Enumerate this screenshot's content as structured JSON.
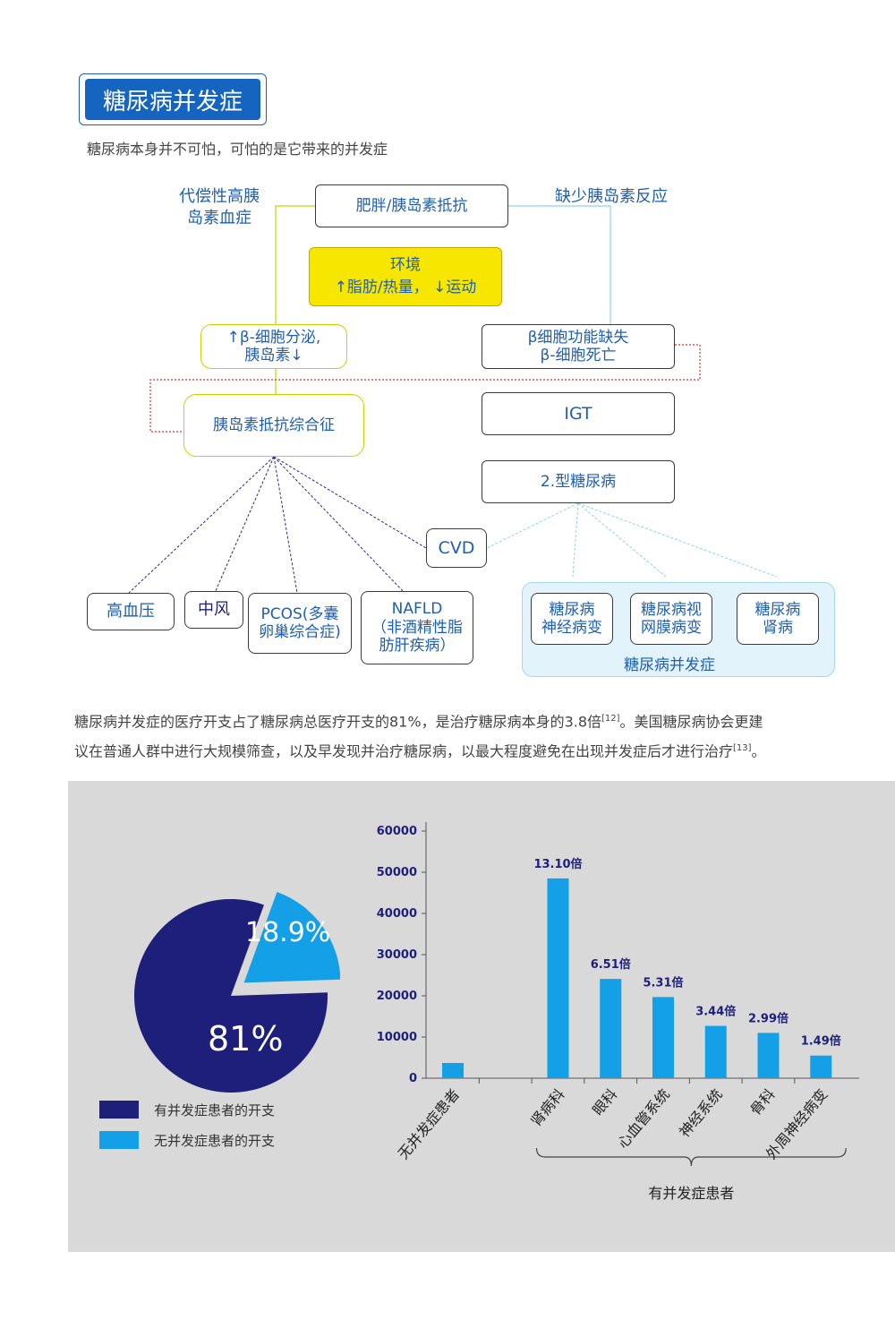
{
  "title": "糖尿病并发症",
  "subtitle": "糖尿病本身并不可怕，可怕的是它带来的并发症",
  "diagram": {
    "top_left_label": [
      "代偿性高胰",
      "岛素血症"
    ],
    "top_right_label": "缺少胰岛素反应",
    "obesity": "肥胖/胰岛素抵抗",
    "environment": [
      "环境",
      "↑脂肪/热量，  ↓运动"
    ],
    "beta_secretion": [
      "↑β-细胞分泌,",
      "胰岛素↓"
    ],
    "beta_failure": [
      "β细胞功能缺失",
      "β-细胞死亡"
    ],
    "insulin_resistance_syndrome": "胰岛素抵抗综合征",
    "igt": "IGT",
    "type2": "2.型糖尿病",
    "cvd": "CVD",
    "hypertension": "高血压",
    "stroke": "中风",
    "pcos": [
      "PCOS(多囊",
      "卵巢综合症)"
    ],
    "nafld": [
      "NAFLD",
      "（非酒精性脂",
      "肪肝疾病）"
    ],
    "neuropathy": [
      "糖尿病",
      "神经病变"
    ],
    "retinopathy": [
      "糖尿病视",
      "网膜病变"
    ],
    "nephropathy": [
      "糖尿病",
      "肾病"
    ],
    "complications_caption": "糖尿病并发症"
  },
  "paragraph": {
    "line1_a": "糖尿病并发症的医疗开支占了糖尿病总医疗开支的81%，是治疗糖尿病本身的3.8倍",
    "ref1": "[12]",
    "line1_b": "。美国糖尿病协会更建",
    "line2_a": "议在普通人群中进行大规模筛查，以及早发现并治疗糖尿病，以最大程度避免在出现并发症后才进行治疗",
    "ref2": "[13]",
    "line2_b": "。"
  },
  "pie": {
    "slices": [
      {
        "label": "81%",
        "value": 81.1,
        "color": "#1e1f7a"
      },
      {
        "label": "18.9%",
        "value": 18.9,
        "color": "#13a0e6"
      }
    ],
    "legend": [
      {
        "text": "有并发症患者的开支",
        "color": "#1e1f7a"
      },
      {
        "text": "无并发症患者的开支",
        "color": "#13a0e6"
      }
    ]
  },
  "chart_data": {
    "type": "bar",
    "categories": [
      "无并发症患者",
      "",
      "肾病科",
      "眼科",
      "心血管系统",
      "神经系统",
      "骨科",
      "外周神经病变"
    ],
    "values": [
      3700,
      null,
      48500,
      24100,
      19700,
      12700,
      11000,
      5500
    ],
    "data_labels": [
      "",
      "",
      "13.10倍",
      "6.51倍",
      "5.31倍",
      "3.44倍",
      "2.99倍",
      "1.49倍"
    ],
    "yticks": [
      0,
      10000,
      20000,
      30000,
      40000,
      50000,
      60000
    ],
    "ylim": [
      0,
      60000
    ],
    "bar_color": "#13a0e6",
    "group_label": "有并发症患者",
    "grid": false
  }
}
